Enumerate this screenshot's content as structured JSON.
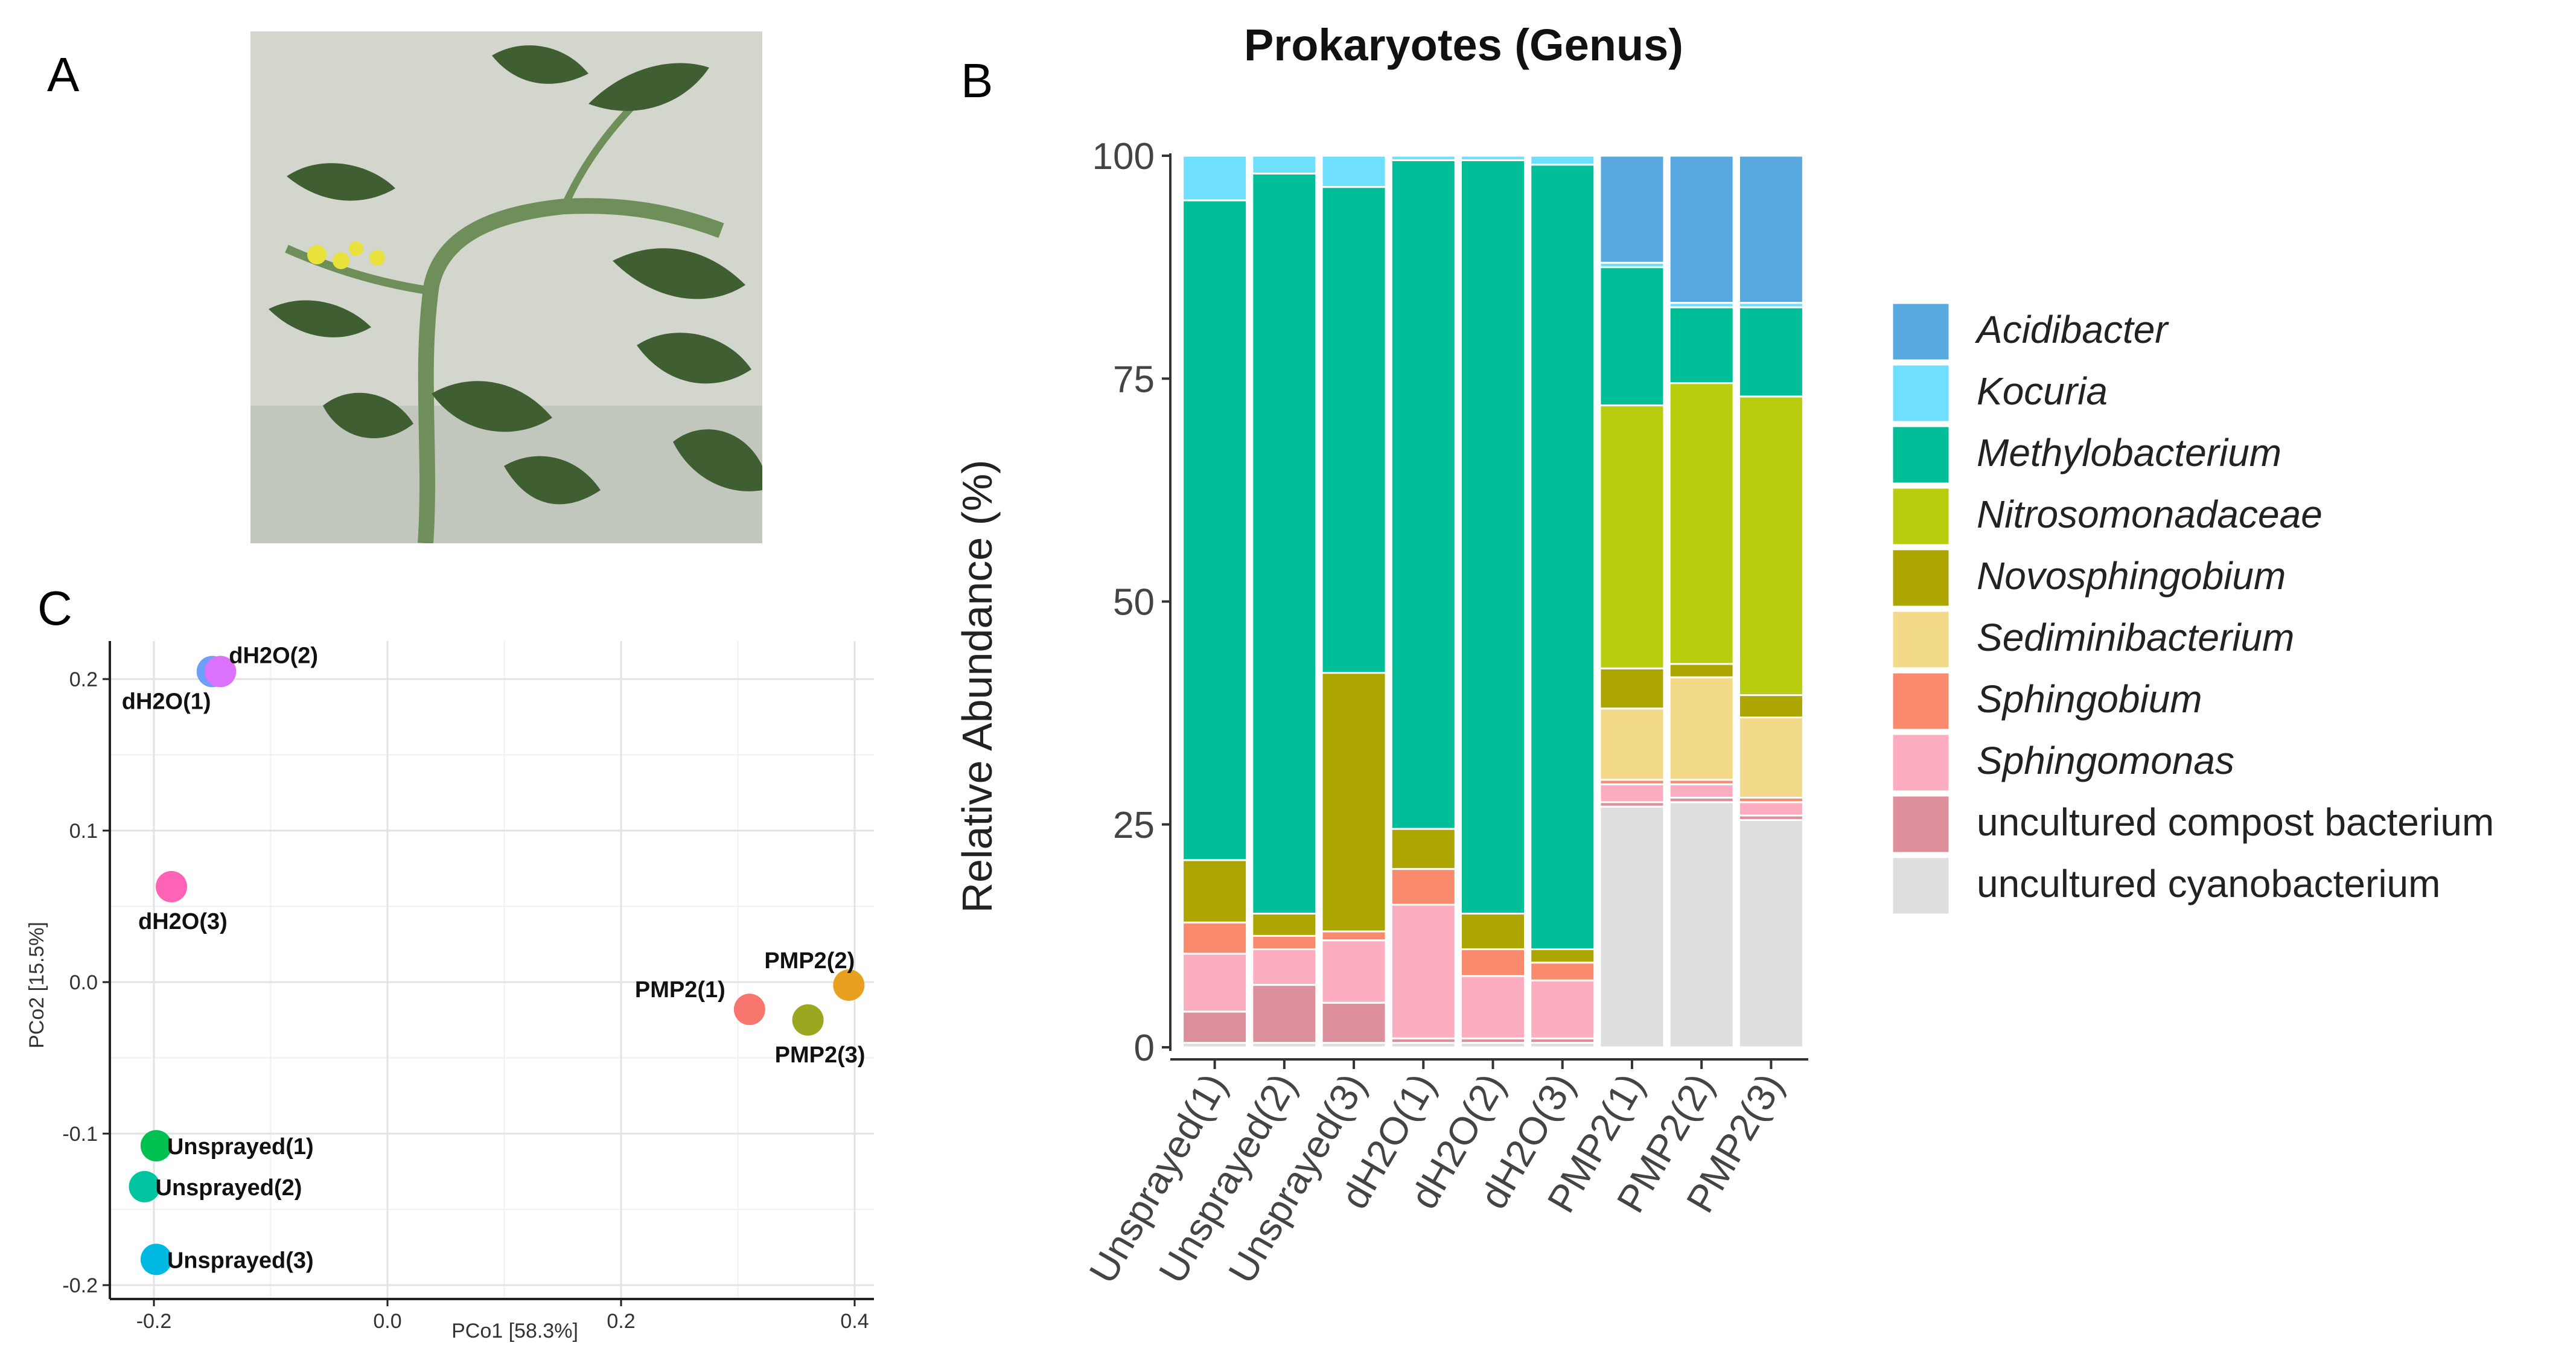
{
  "panels": {
    "a": "A",
    "b": "B",
    "c": "C"
  },
  "photo": {
    "subject": "tomato-plant-photo"
  },
  "chart_data": [
    {
      "type": "bar",
      "stacked": true,
      "title": "Prokaryotes (Genus)",
      "xlabel": "",
      "ylabel": "Relative Abundance (%)",
      "ylim": [
        0,
        100
      ],
      "yticks": [
        "0",
        "25",
        "50",
        "75",
        "100"
      ],
      "yticks_values": [
        0,
        25,
        50,
        75,
        100
      ],
      "categories": [
        "Unsprayed(1)",
        "Unsprayed(2)",
        "Unsprayed(3)",
        "dH2O(1)",
        "dH2O(2)",
        "dH2O(3)",
        "PMP2(1)",
        "PMP2(2)",
        "PMP2(3)"
      ],
      "series": [
        {
          "name": "uncultured cyanobacterium",
          "color": "#dedede",
          "values": [
            0.5,
            0.5,
            0.5,
            0.5,
            0.5,
            0.5,
            27,
            27.5,
            25.5
          ]
        },
        {
          "name": "uncultured compost bacterium",
          "color": "#de8f9c",
          "values": [
            3.5,
            6.5,
            4.5,
            0.5,
            0.5,
            0.5,
            0.5,
            0.5,
            0.5
          ]
        },
        {
          "name": "Sphingomonas",
          "color": "#fcaec0",
          "values": [
            6.5,
            4,
            7,
            15,
            7,
            6.5,
            2,
            1.5,
            1.5
          ]
        },
        {
          "name": "Sphingobium",
          "color": "#fa8a6e",
          "values": [
            3.5,
            1.5,
            1,
            4,
            3,
            2,
            0.5,
            0.5,
            0.5
          ]
        },
        {
          "name": "Sediminibacterium",
          "color": "#f3d98a",
          "values": [
            0,
            0,
            0,
            0,
            0,
            0,
            8,
            11.5,
            9
          ]
        },
        {
          "name": "Novosphingobium",
          "color": "#ada500",
          "values": [
            7,
            2.5,
            29,
            4.5,
            4,
            1.5,
            4.5,
            1.5,
            2.5
          ]
        },
        {
          "name": "Nitrosomonadaceae",
          "color": "#b7cd0d",
          "values": [
            0,
            0,
            0,
            0,
            0,
            0,
            29.5,
            31.5,
            33.5
          ]
        },
        {
          "name": "Methylobacterium",
          "color": "#00be98",
          "values": [
            74,
            83,
            54.5,
            75,
            84.5,
            88,
            15.5,
            8.5,
            10
          ]
        },
        {
          "name": "Kocuria",
          "color": "#6ee0fd",
          "values": [
            5,
            2,
            3.5,
            0.5,
            0.5,
            1,
            0.5,
            0.5,
            0.5
          ]
        },
        {
          "name": "Acidibacter",
          "color": "#57a9e0",
          "values": [
            0,
            0,
            0,
            0,
            0,
            0,
            12,
            16.5,
            16.5
          ]
        }
      ],
      "legend": {
        "position": "right",
        "entries": [
          "Acidibacter",
          "Kocuria",
          "Methylobacterium",
          "Nitrosomonadaceae",
          "Novosphingobium",
          "Sediminibacterium",
          "Sphingobium",
          "Sphingomonas",
          "uncultured compost bacterium",
          "uncultured cyanobacterium"
        ],
        "italic": [
          true,
          true,
          true,
          true,
          true,
          true,
          true,
          true,
          false,
          false
        ]
      }
    },
    {
      "type": "scatter",
      "title": "",
      "xlabel": "PCo1 [58.3%]",
      "ylabel": "PCo2 [15.5%]",
      "xlim": [
        -0.225,
        0.425
      ],
      "ylim": [
        -0.2,
        0.215
      ],
      "xticks": [
        "-0.2",
        "0.0",
        "0.2",
        "0.4"
      ],
      "xticks_values": [
        -0.2,
        0.0,
        0.2,
        0.4
      ],
      "yticks": [
        "-0.2",
        "-0.1",
        "0.0",
        "0.1",
        "0.2"
      ],
      "yticks_values": [
        -0.2,
        -0.1,
        0.0,
        0.1,
        0.2
      ],
      "grid": true,
      "points": [
        {
          "label": "dH2O(1)",
          "x": -0.15,
          "y": 0.205,
          "color": "#6f9ef8",
          "label_pos": "below-left"
        },
        {
          "label": "dH2O(2)",
          "x": -0.143,
          "y": 0.205,
          "color": "#db72fb",
          "label_pos": "above-right"
        },
        {
          "label": "dH2O(3)",
          "x": -0.185,
          "y": 0.063,
          "color": "#ff63b6",
          "label_pos": "below"
        },
        {
          "label": "PMP2(1)",
          "x": 0.31,
          "y": -0.018,
          "color": "#f8766d",
          "label_pos": "above-left"
        },
        {
          "label": "PMP2(2)",
          "x": 0.395,
          "y": -0.002,
          "color": "#e9a020",
          "label_pos": "above"
        },
        {
          "label": "PMP2(3)",
          "x": 0.36,
          "y": -0.025,
          "color": "#9aa81f",
          "label_pos": "below"
        },
        {
          "label": "Unsprayed(1)",
          "x": -0.198,
          "y": -0.108,
          "color": "#00c150",
          "label_pos": "right"
        },
        {
          "label": "Unsprayed(2)",
          "x": -0.208,
          "y": -0.135,
          "color": "#00c5a0",
          "label_pos": "right"
        },
        {
          "label": "Unsprayed(3)",
          "x": -0.198,
          "y": -0.183,
          "color": "#00b9e3",
          "label_pos": "right"
        }
      ]
    }
  ]
}
